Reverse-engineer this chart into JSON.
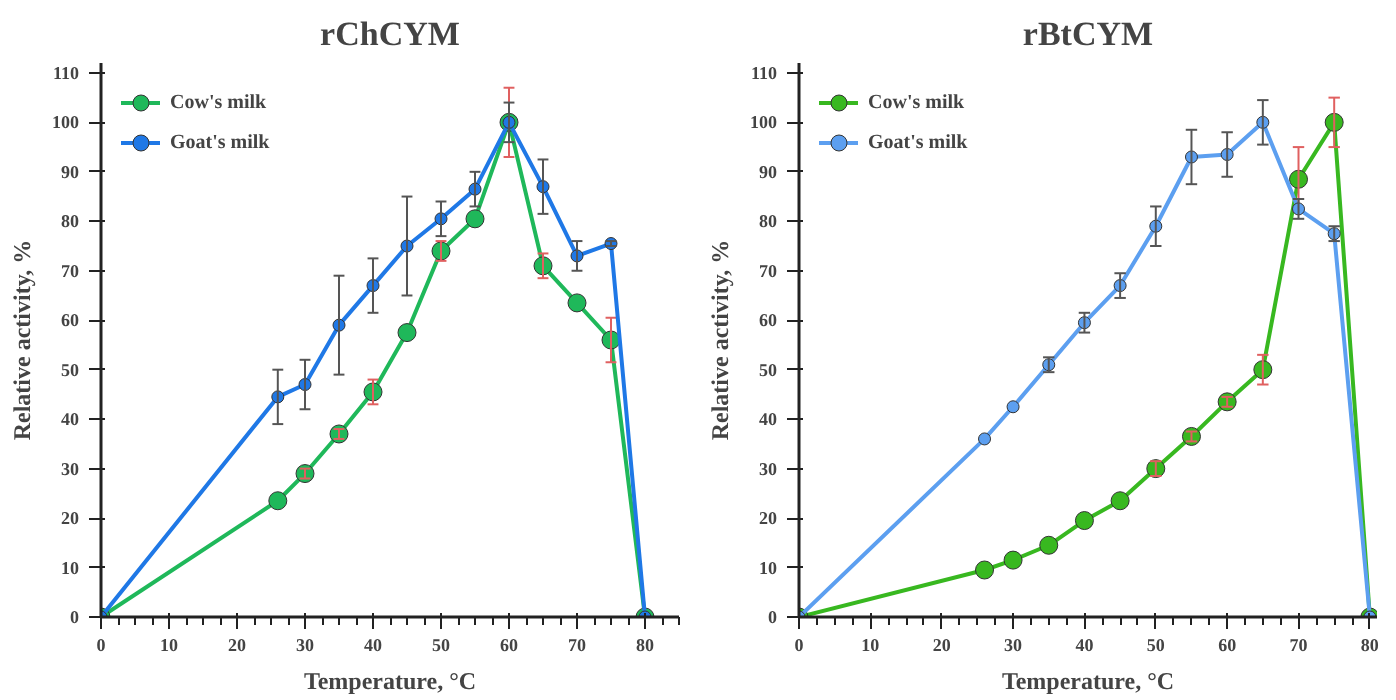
{
  "chart_data": [
    {
      "type": "line",
      "title": "rChCYM",
      "xlabel": "Temperature, °C",
      "ylabel": "Relative activity, %",
      "xlim": [
        0,
        85
      ],
      "ylim": [
        0,
        112
      ],
      "xticks": [
        0,
        10,
        20,
        30,
        40,
        50,
        60,
        70,
        80
      ],
      "yticks": [
        0,
        10,
        20,
        30,
        40,
        50,
        60,
        70,
        80,
        90,
        100,
        110
      ],
      "grid": false,
      "legend": "top left",
      "marker": "circle",
      "series": [
        {
          "name": "Cow's milk",
          "color": "#1fb85a",
          "x": [
            0,
            26,
            30,
            35,
            40,
            45,
            50,
            55,
            60,
            65,
            70,
            75,
            80
          ],
          "values": [
            0,
            23.5,
            29,
            37,
            45.5,
            57.5,
            74,
            80.5,
            100,
            71,
            63.5,
            56,
            0
          ],
          "errors": [
            null,
            null,
            1,
            1,
            2.5,
            null,
            2,
            null,
            7,
            2.5,
            null,
            4.5,
            null
          ]
        },
        {
          "name": "Goat's milk",
          "color": "#1f78e6",
          "x": [
            0,
            26,
            30,
            35,
            40,
            45,
            50,
            55,
            60,
            65,
            70,
            75,
            80
          ],
          "values": [
            0,
            44.5,
            47,
            59,
            67,
            75,
            80.5,
            86.5,
            100,
            87,
            73,
            75.5,
            0
          ],
          "errors": [
            null,
            5.5,
            5,
            10,
            5.5,
            10,
            3.5,
            3.5,
            4,
            5.5,
            3,
            0.5,
            null
          ]
        }
      ]
    },
    {
      "type": "line",
      "title": "rBtCYM",
      "xlabel": "Temperature, °C",
      "ylabel": "Relative activity, %",
      "xlim": [
        0,
        81
      ],
      "ylim": [
        0,
        112
      ],
      "xticks": [
        0,
        10,
        20,
        30,
        40,
        50,
        60,
        70,
        80
      ],
      "yticks": [
        0,
        10,
        20,
        30,
        40,
        50,
        60,
        70,
        80,
        90,
        100,
        110
      ],
      "grid": false,
      "legend": "top left",
      "marker": "circle",
      "series": [
        {
          "name": "Cow's milk",
          "color": "#38b820",
          "x": [
            0,
            26,
            30,
            35,
            40,
            45,
            50,
            55,
            60,
            65,
            70,
            75,
            80
          ],
          "values": [
            0,
            9.5,
            11.5,
            14.5,
            19.5,
            23.5,
            30,
            36.5,
            43.5,
            50,
            88.5,
            100,
            0
          ],
          "errors": [
            null,
            null,
            null,
            null,
            null,
            null,
            1.5,
            1,
            1,
            3,
            6.5,
            5,
            null
          ]
        },
        {
          "name": "Goat's milk",
          "color": "#5c9ff0",
          "x": [
            0,
            26,
            30,
            35,
            40,
            45,
            50,
            55,
            60,
            65,
            70,
            75,
            80
          ],
          "values": [
            0,
            36,
            42.5,
            51,
            59.5,
            67,
            79,
            93,
            93.5,
            100,
            82.5,
            77.5,
            0
          ],
          "errors": [
            null,
            null,
            null,
            1.5,
            2,
            2.5,
            4,
            5.5,
            4.5,
            4.5,
            2,
            1.5,
            null
          ]
        }
      ]
    }
  ]
}
